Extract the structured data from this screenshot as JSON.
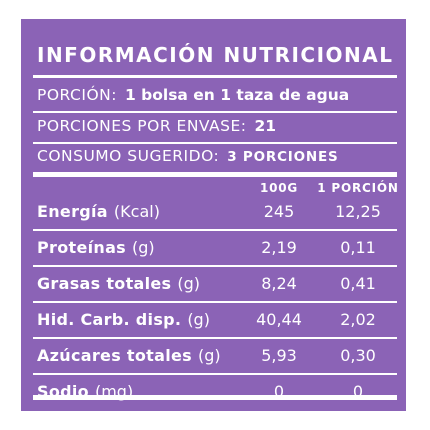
{
  "label": {
    "title": "INFORMACIÓN NUTRICIONAL",
    "serving": {
      "label": "PORCIÓN:",
      "value": "1 bolsa en 1 taza de agua"
    },
    "servings_per_package": {
      "label": "PORCIONES POR ENVASE:",
      "value": "21"
    },
    "suggested_consumption": {
      "label": "CONSUMO SUGERIDO:",
      "value": "3 PORCIONES"
    },
    "columns": {
      "per_100g": "100G",
      "per_portion": "1 PORCIÓN"
    },
    "nutrients": [
      {
        "name": "Energía",
        "unit": "(Kcal)",
        "per_100g": "245",
        "per_portion": "12,25"
      },
      {
        "name": "Proteínas",
        "unit": "(g)",
        "per_100g": "2,19",
        "per_portion": "0,11"
      },
      {
        "name": "Grasas totales",
        "unit": "(g)",
        "per_100g": "8,24",
        "per_portion": "0,41"
      },
      {
        "name": "Hid. Carb. disp.",
        "unit": "(g)",
        "per_100g": "40,44",
        "per_portion": "2,02"
      },
      {
        "name": "Azúcares totales",
        "unit": "(g)",
        "per_100g": "5,93",
        "per_portion": "0,30"
      },
      {
        "name": "Sodio",
        "unit": "(mg)",
        "per_100g": "0",
        "per_portion": "0"
      }
    ]
  }
}
